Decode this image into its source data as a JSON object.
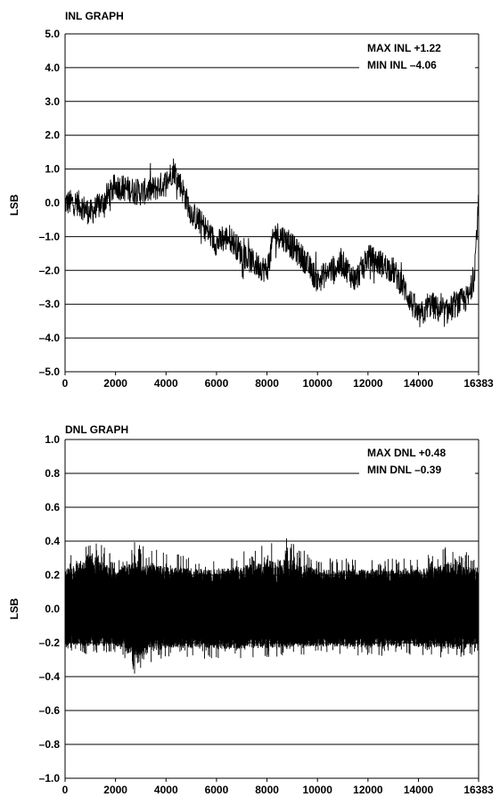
{
  "chart_data": [
    {
      "type": "line",
      "title": "INL GRAPH",
      "xlabel": "",
      "ylabel": "LSB",
      "xlim": [
        0,
        16383
      ],
      "ylim": [
        -5.0,
        5.0
      ],
      "grid": "horizontal",
      "x_ticks": [
        "0",
        "2000",
        "4000",
        "6000",
        "8000",
        "10000",
        "12000",
        "14000",
        "16383"
      ],
      "y_ticks": [
        "5.0",
        "4.0",
        "3.0",
        "2.0",
        "1.0",
        "0.0",
        "–1.0",
        "–2.0",
        "–3.0",
        "–4.0",
        "–5.0"
      ],
      "annotations": [
        "MAX INL +1.22",
        "MIN INL –4.06"
      ],
      "series": [
        {
          "x": [
            0,
            500,
            1000,
            1500,
            2000,
            2500,
            3000,
            3500,
            4000,
            4300,
            4600,
            5000,
            5500,
            6000,
            6500,
            7000,
            7500,
            8000,
            8300,
            8600,
            9000,
            9500,
            10000,
            10500,
            11000,
            11500,
            12000,
            12500,
            13000,
            13500,
            14000,
            14500,
            15000,
            15500,
            16000,
            16200,
            16383
          ],
          "values": [
            0.0,
            0.0,
            -0.3,
            0.0,
            0.5,
            0.4,
            0.3,
            0.4,
            0.6,
            1.0,
            0.5,
            -0.3,
            -0.7,
            -1.2,
            -1.0,
            -1.5,
            -1.8,
            -2.0,
            -0.9,
            -1.0,
            -1.3,
            -1.7,
            -2.3,
            -2.0,
            -1.8,
            -2.3,
            -1.6,
            -1.8,
            -2.0,
            -2.6,
            -3.4,
            -3.0,
            -3.3,
            -3.0,
            -2.8,
            -2.2,
            0.0
          ]
        }
      ]
    },
    {
      "type": "line",
      "title": "DNL GRAPH",
      "xlabel": "",
      "ylabel": "LSB",
      "xlim": [
        0,
        16383
      ],
      "ylim": [
        -1.0,
        1.0
      ],
      "grid": "horizontal",
      "x_ticks": [
        "0",
        "2000",
        "4000",
        "6000",
        "8000",
        "10000",
        "12000",
        "14000",
        "16383"
      ],
      "y_ticks": [
        "1.0",
        "0.8",
        "0.6",
        "0.4",
        "0.2",
        "0.0",
        "–0.2",
        "–0.4",
        "–0.6",
        "–0.8",
        "–1.0"
      ],
      "annotations": [
        "MAX DNL +0.48",
        "MIN DNL –0.39"
      ],
      "envelope": {
        "x": [
          0,
          1000,
          2000,
          2800,
          4000,
          6000,
          8800,
          10000,
          12000,
          14000,
          15500,
          16383
        ],
        "upper": [
          0.28,
          0.48,
          0.3,
          0.4,
          0.33,
          0.3,
          0.42,
          0.3,
          0.3,
          0.3,
          0.4,
          0.28
        ],
        "lower": [
          -0.25,
          -0.27,
          -0.26,
          -0.39,
          -0.28,
          -0.3,
          -0.28,
          -0.27,
          -0.28,
          -0.27,
          -0.3,
          -0.26
        ]
      }
    }
  ]
}
